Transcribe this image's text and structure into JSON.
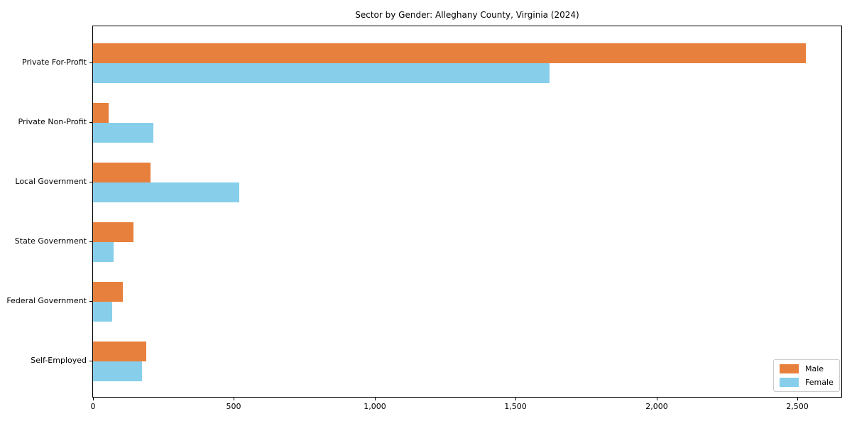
{
  "chart_data": {
    "type": "bar",
    "orientation": "horizontal",
    "title": "Sector by Gender: Alleghany County, Virginia (2024)",
    "xlabel": "",
    "ylabel": "",
    "categories": [
      "Private For-Profit",
      "Private Non-Profit",
      "Local Government",
      "State Government",
      "Federal Government",
      "Self-Employed"
    ],
    "series": [
      {
        "name": "Male",
        "color": "#e8803d",
        "values": [
          2530,
          55,
          205,
          143,
          105,
          190
        ]
      },
      {
        "name": "Female",
        "color": "#87ceeb",
        "values": [
          1620,
          215,
          520,
          74,
          67,
          175
        ]
      }
    ],
    "xlim": [
      0,
      2656
    ],
    "x_ticks": [
      0,
      500,
      1000,
      1500,
      2000,
      2500
    ],
    "x_tick_labels": [
      "0",
      "500",
      "1,000",
      "1,500",
      "2,000",
      "2,500"
    ],
    "grid": false,
    "legend_position": "lower right"
  }
}
